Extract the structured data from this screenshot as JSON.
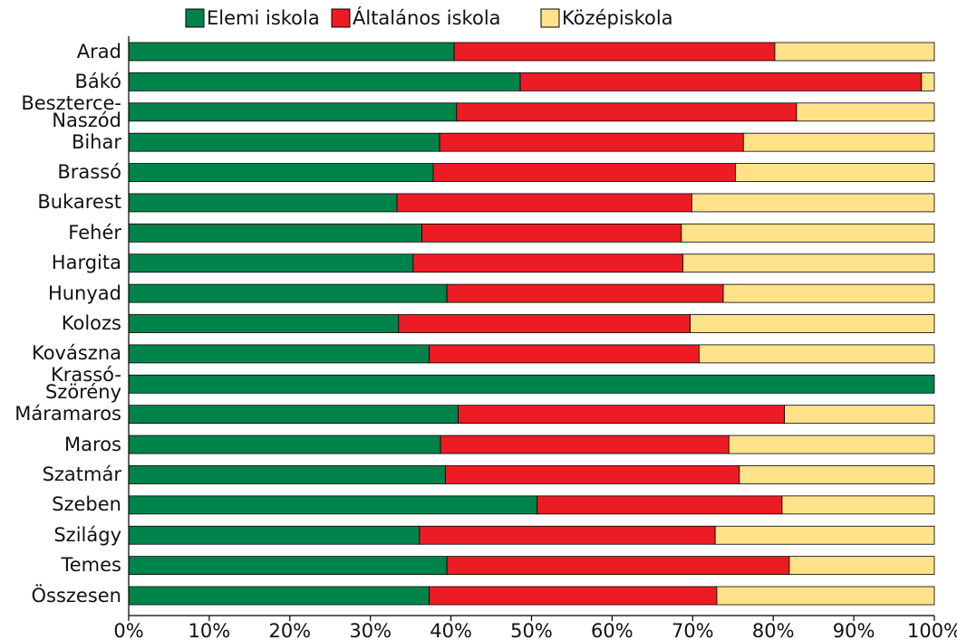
{
  "chart_data": {
    "type": "stacked-barh",
    "categories": [
      "Arad",
      "Bákó",
      "Beszterce-\nNaszód",
      "Bihar",
      "Brassó",
      "Bukarest",
      "Fehér",
      "Hargita",
      "Hunyad",
      "Kolozs",
      "Kovászna",
      "Krassó-\nSzörény",
      "Máramaros",
      "Maros",
      "Szatmár",
      "Szeben",
      "Szilágy",
      "Temes",
      "Összesen"
    ],
    "series": [
      {
        "name": "Elemi iskola",
        "color": "#00834a",
        "values": [
          40.4,
          48.6,
          40.7,
          38.6,
          37.8,
          33.3,
          36.4,
          35.3,
          39.5,
          33.5,
          37.3,
          100,
          40.9,
          38.7,
          39.3,
          50.7,
          36.1,
          39.5,
          37.3
        ]
      },
      {
        "name": "Általános iskola",
        "color": "#ed1c24",
        "values": [
          39.8,
          49.8,
          42.2,
          37.7,
          37.5,
          36.6,
          32.2,
          33.5,
          34.3,
          36.2,
          33.5,
          0,
          40.5,
          35.8,
          36.5,
          30.4,
          36.7,
          42.5,
          35.7
        ]
      },
      {
        "name": "Középiskola",
        "color": "#ffe28a",
        "values": [
          19.8,
          1.6,
          17.1,
          23.7,
          24.7,
          30.1,
          31.4,
          31.2,
          26.2,
          30.3,
          29.2,
          0,
          18.6,
          25.5,
          24.2,
          18.9,
          27.2,
          18.0,
          27.0
        ]
      }
    ],
    "xlim": [
      0,
      100
    ],
    "xticks": [
      {
        "value": 0,
        "label": "0%"
      },
      {
        "value": 10,
        "label": "10%"
      },
      {
        "value": 20,
        "label": "20%"
      },
      {
        "value": 30,
        "label": "30%"
      },
      {
        "value": 40,
        "label": "40%"
      },
      {
        "value": 50,
        "label": "50%"
      },
      {
        "value": 60,
        "label": "60%"
      },
      {
        "value": 70,
        "label": "70%"
      },
      {
        "value": 80,
        "label": "80%"
      },
      {
        "value": 90,
        "label": "90%"
      },
      {
        "value": 100,
        "label": "100%"
      }
    ],
    "legend": "top"
  }
}
